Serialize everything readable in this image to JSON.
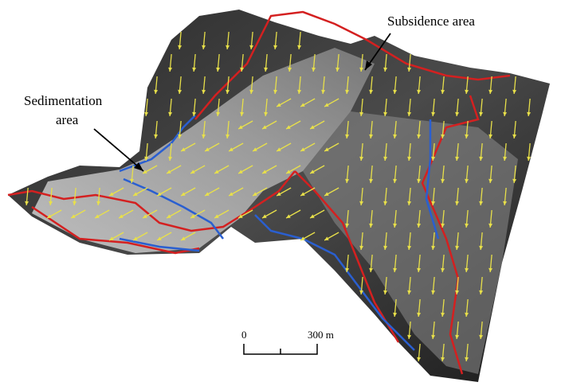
{
  "annotations": {
    "subsidence": "Subsidence area",
    "sedimentation": [
      "Sedimentation",
      "area"
    ]
  },
  "scale_bar": {
    "start": "0",
    "end": "300 m"
  }
}
